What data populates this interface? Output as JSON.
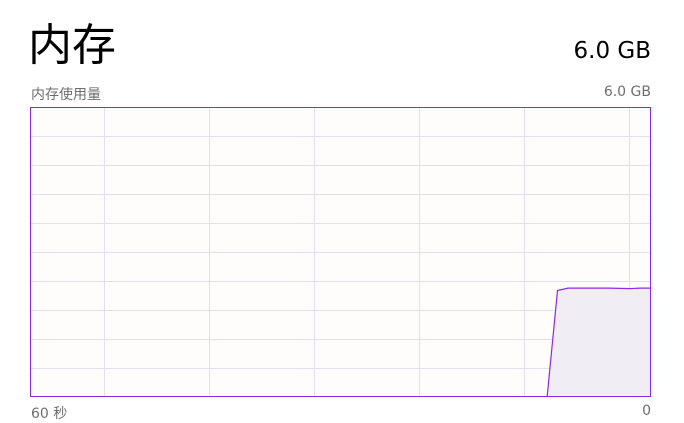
{
  "header": {
    "title": "内存",
    "total": "6.0 GB"
  },
  "graph": {
    "label": "内存使用量",
    "max_label": "6.0 GB",
    "x_start_label": "60 秒",
    "x_end_label": "0",
    "accent_color": "#8a2be2",
    "fill_color": "#f1edf4",
    "grid_color": "#e3dff0",
    "bg_color": "#fffdfb"
  },
  "chart_data": {
    "type": "area",
    "x": [
      60,
      55,
      54,
      50,
      45,
      40,
      35,
      30,
      25,
      20,
      15,
      10,
      5,
      2,
      0
    ],
    "values": [
      0,
      0,
      0,
      0,
      0,
      0,
      0,
      0,
      0,
      0,
      0,
      0,
      0,
      0,
      0
    ],
    "series": [
      {
        "x": [
          10,
          9,
          8,
          6,
          4,
          2,
          1,
          0
        ],
        "values": [
          0,
          2.2,
          2.25,
          2.25,
          2.25,
          2.24,
          2.25,
          2.25
        ]
      }
    ],
    "ylim": [
      0,
      6.0
    ],
    "xlim": [
      60,
      0
    ],
    "grid": true
  }
}
